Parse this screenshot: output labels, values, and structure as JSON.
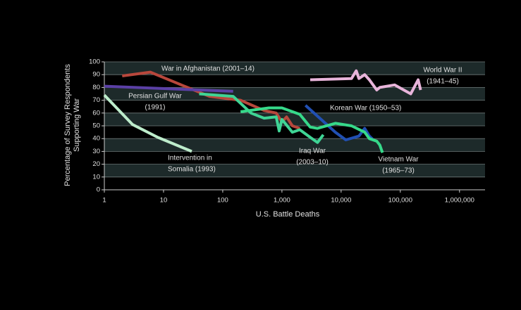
{
  "chart_data": {
    "type": "line",
    "log_x": true,
    "xlabel": "U.S. Battle Deaths",
    "ylabel": [
      "Percentage of Survey Respondents",
      "Supporting War"
    ],
    "xlim": [
      1,
      2700000
    ],
    "ylim": [
      0,
      100
    ],
    "xticks": [
      1,
      10,
      100,
      {
        "value": 1000,
        "label": "1,000"
      },
      {
        "value": 10000,
        "label": "10,000"
      },
      {
        "value": 100000,
        "label": "100,000"
      },
      {
        "value": 1000000,
        "label": "1,000,000"
      }
    ],
    "yticks": [
      0,
      10,
      20,
      30,
      40,
      50,
      60,
      70,
      80,
      90,
      100
    ],
    "grid": true,
    "series": [
      {
        "label_lines": [
          "War in Afghanistan (2001–14)"
        ],
        "color": "#b8473c",
        "x": [
          2,
          6,
          20,
          60,
          200,
          500,
          800,
          1000,
          1200,
          1500,
          2000
        ],
        "values": [
          89,
          92,
          82,
          73,
          70,
          62,
          60,
          53,
          57,
          50,
          48
        ]
      },
      {
        "label_lines": [
          "Persian Gulf War",
          "(1991)"
        ],
        "color": "#5b40a6",
        "x": [
          1,
          150
        ],
        "values": [
          81,
          77
        ]
      },
      {
        "label_lines": [
          "Intervention in",
          "Somalia (1993)"
        ],
        "color": "#bdeccb",
        "x": [
          1,
          3,
          8,
          30
        ],
        "values": [
          74,
          51,
          41,
          30
        ]
      },
      {
        "label_lines": [
          "Iraq War",
          "(2003–10)"
        ],
        "color": "#3fd495",
        "x": [
          40,
          150,
          300,
          500,
          800,
          900,
          1000,
          1500,
          2000,
          3000,
          4000,
          5000
        ],
        "values": [
          75,
          73,
          60,
          56,
          57,
          46,
          55,
          45,
          47,
          41,
          37,
          43
        ]
      },
      {
        "label_lines": [
          "Korean War (1950–53)"
        ],
        "color": "#2150b3",
        "x": [
          2500,
          8000,
          12000,
          20000,
          25000,
          30000,
          35000
        ],
        "values": [
          66,
          45,
          39,
          42,
          48,
          42,
          39
        ]
      },
      {
        "label_lines": [
          "Vietnam War",
          "(1965–73)"
        ],
        "color": "#36d98a",
        "x": [
          200,
          600,
          1000,
          2000,
          3000,
          4000,
          8000,
          15000,
          25000,
          30000,
          40000,
          45000,
          50000
        ],
        "values": [
          61,
          64,
          64,
          59,
          49,
          48,
          52,
          50,
          45,
          40,
          38,
          35,
          29
        ]
      },
      {
        "label_lines": [
          "World War II",
          "(1941–45)"
        ],
        "color": "#e8b4da",
        "x": [
          3000,
          15000,
          18000,
          20000,
          25000,
          30000,
          40000,
          45000,
          80000,
          150000,
          200000,
          220000
        ],
        "values": [
          86,
          87,
          93,
          87,
          90,
          86,
          78,
          80,
          82,
          75,
          86,
          78
        ]
      }
    ]
  }
}
